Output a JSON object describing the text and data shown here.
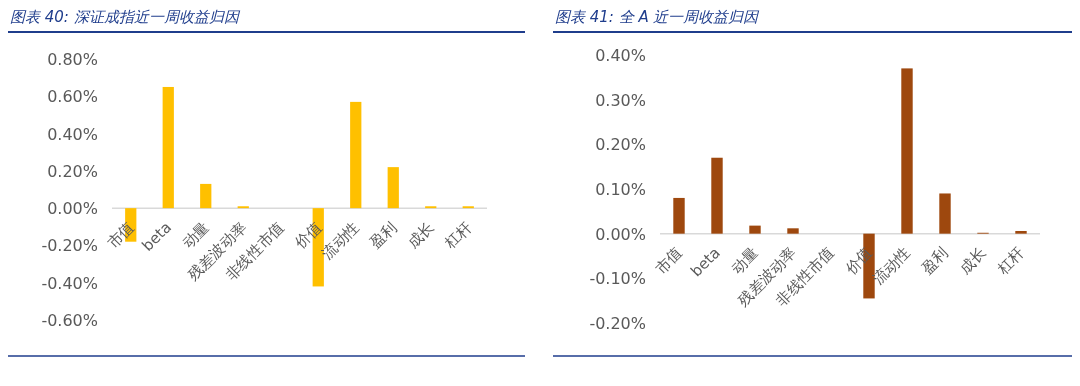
{
  "chart_data": [
    {
      "type": "bar",
      "title": "图表 40: 深证成指近一周收益归因",
      "categories": [
        "市值",
        "beta",
        "动量",
        "残差波动率",
        "非线性市值",
        "价值",
        "流动性",
        "盈利",
        "成长",
        "杠杆"
      ],
      "values": [
        -0.18,
        0.65,
        0.13,
        0.01,
        0,
        -0.42,
        0.57,
        0.22,
        0.01,
        0.01
      ],
      "color": "#ffc000",
      "ylim": [
        -0.6,
        0.8
      ],
      "yticks": [
        {
          "value": -0.6,
          "label": "-0.60%"
        },
        {
          "value": -0.4,
          "label": "-0.40%"
        },
        {
          "value": -0.2,
          "label": "-0.20%"
        },
        {
          "value": 0,
          "label": "0.00%"
        },
        {
          "value": 0.2,
          "label": "0.20%"
        },
        {
          "value": 0.4,
          "label": "0.40%"
        },
        {
          "value": 0.6,
          "label": "0.60%"
        },
        {
          "value": 0.8,
          "label": "0.80%"
        }
      ]
    },
    {
      "type": "bar",
      "title": "图表 41: 全 A 近一周收益归因",
      "categories": [
        "市值",
        "beta",
        "动量",
        "残差波动率",
        "非线性市值",
        "价值",
        "流动性",
        "盈利",
        "成长",
        "杠杆"
      ],
      "values": [
        0.08,
        0.17,
        0.018,
        0.012,
        0,
        -0.145,
        0.37,
        0.09,
        0.002,
        0.006
      ],
      "color": "#9e480e",
      "ylim": [
        -0.2,
        0.4
      ],
      "yticks": [
        {
          "value": -0.2,
          "label": "-0.20%"
        },
        {
          "value": -0.1,
          "label": "-0.10%"
        },
        {
          "value": 0,
          "label": "0.00%"
        },
        {
          "value": 0.1,
          "label": "0.10%"
        },
        {
          "value": 0.2,
          "label": "0.20%"
        },
        {
          "value": 0.3,
          "label": "0.30%"
        },
        {
          "value": 0.4,
          "label": "0.40%"
        }
      ]
    }
  ]
}
